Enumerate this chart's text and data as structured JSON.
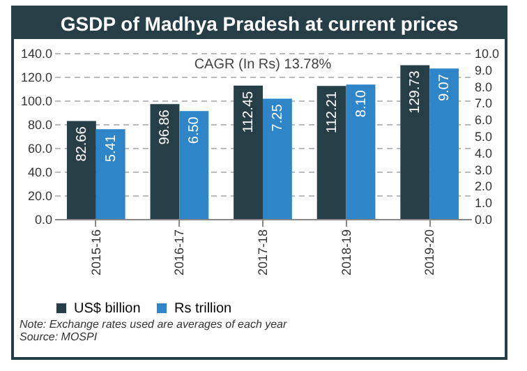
{
  "chart_data": {
    "type": "bar",
    "title": "GSDP of Madhya Pradesh at current prices",
    "categories": [
      "2015-16",
      "2016-17",
      "2017-18",
      "2018-19",
      "2019-20"
    ],
    "series": [
      {
        "name": "US$ billion",
        "color": "#263f47",
        "values": [
          82.66,
          96.86,
          112.45,
          112.21,
          129.73
        ],
        "value_labels": [
          "82.66",
          "96.86",
          "112.45",
          "112.21",
          "129.73"
        ]
      },
      {
        "name": "Rs trillion",
        "color": "#2e86c8",
        "axis": "y2",
        "values": [
          5.41,
          6.5,
          7.25,
          8.1,
          9.07
        ],
        "value_labels": [
          "5.41",
          "6.50",
          "7.25",
          "8.10",
          "9.07"
        ]
      }
    ],
    "ylim": [
      0,
      140
    ],
    "yticks": [
      {
        "value": 0,
        "label": "0.0"
      },
      {
        "value": 20,
        "label": "20.0"
      },
      {
        "value": 40,
        "label": "40.0"
      },
      {
        "value": 60,
        "label": "60.0"
      },
      {
        "value": 80,
        "label": "80.0"
      },
      {
        "value": 100,
        "label": "100.0"
      },
      {
        "value": 120,
        "label": "120.0"
      },
      {
        "value": 140,
        "label": "140.0"
      }
    ],
    "y2lim": [
      0,
      10
    ],
    "y2ticks": [
      {
        "value": 0,
        "label": "0.0"
      },
      {
        "value": 1,
        "label": "1.0"
      },
      {
        "value": 2,
        "label": "2.0"
      },
      {
        "value": 3,
        "label": "3.0"
      },
      {
        "value": 4,
        "label": "4.0"
      },
      {
        "value": 5,
        "label": "5.0"
      },
      {
        "value": 6,
        "label": "6.0"
      },
      {
        "value": 7,
        "label": "7.0"
      },
      {
        "value": 8,
        "label": "8.0"
      },
      {
        "value": 9,
        "label": "9.0"
      },
      {
        "value": 10,
        "label": "10.0"
      }
    ],
    "grid": "y",
    "legend": "bottom",
    "annotations": [
      "CAGR (In Rs) 13.78%",
      "Note: Exchange rates used are averages of each year",
      "Source: MOSPI"
    ]
  }
}
